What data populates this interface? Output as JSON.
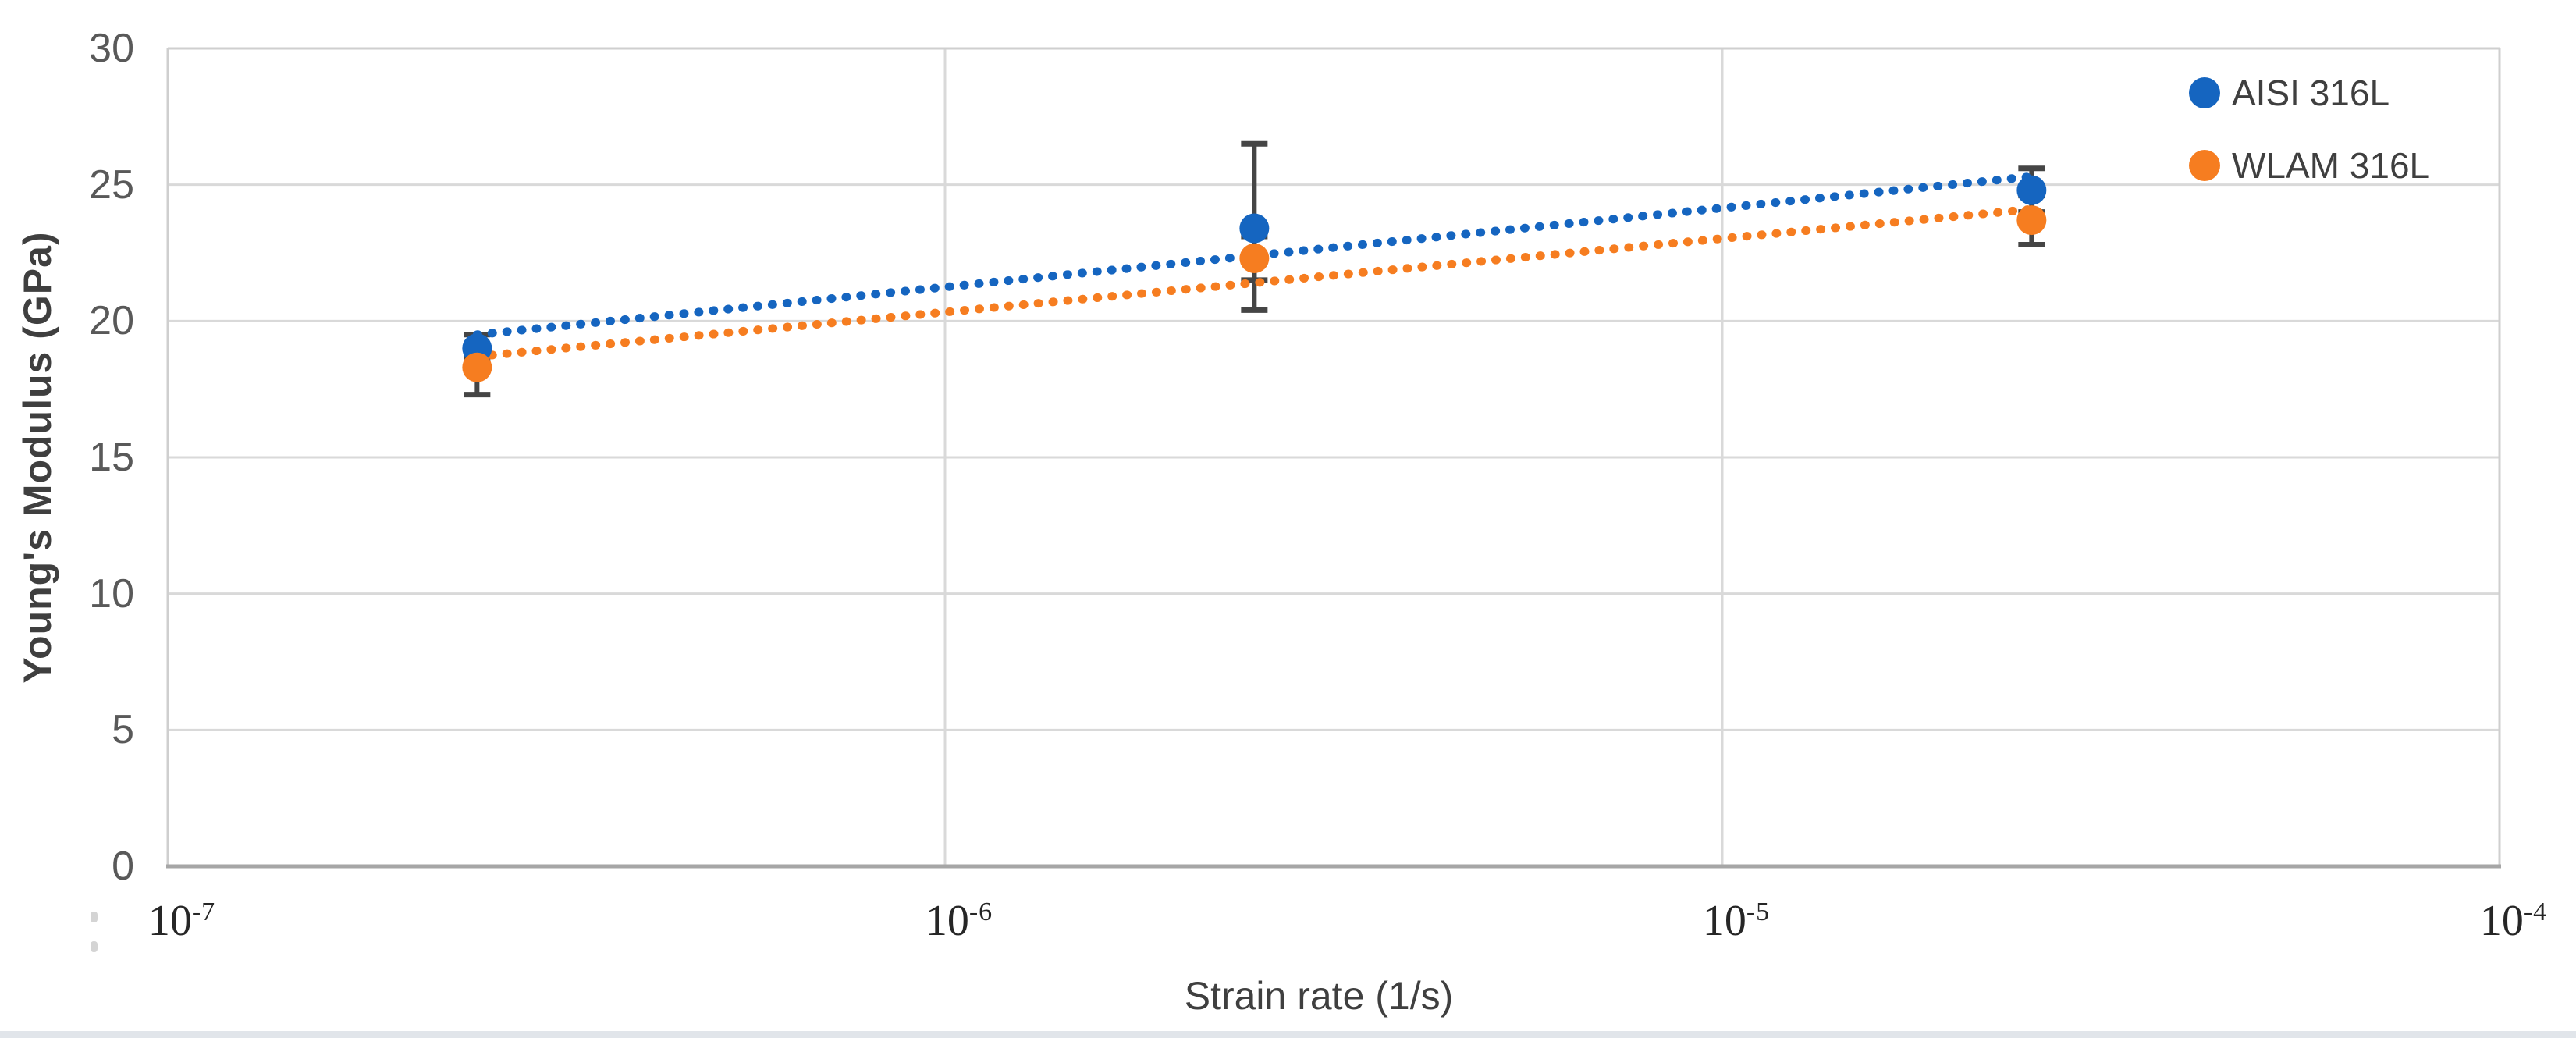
{
  "chart_data": {
    "type": "scatter",
    "title": "",
    "xlabel": "Strain rate (1/s)",
    "ylabel": "Young's Modulus (GPa)",
    "x_scale": "log",
    "xlim": [
      1e-07,
      0.0001
    ],
    "ylim": [
      0,
      30
    ],
    "y_ticks": [
      0,
      5,
      10,
      15,
      20,
      25,
      30
    ],
    "x_ticks": [
      {
        "base": "10",
        "exp": "-7",
        "value": 1e-07
      },
      {
        "base": "10",
        "exp": "-6",
        "value": 1e-06
      },
      {
        "base": "10",
        "exp": "-5",
        "value": 1e-05
      },
      {
        "base": "10",
        "exp": "-4",
        "value": 0.0001
      }
    ],
    "grid": {
      "x_values": [
        1e-06,
        1e-05
      ],
      "y_values": [
        5,
        10,
        15,
        20,
        25
      ]
    },
    "legend": {
      "position": "top-right",
      "entries": [
        {
          "label": "AISI 316L",
          "color": "#1565C0"
        },
        {
          "label": "WLAM 316L",
          "color": "#F67D20"
        }
      ]
    },
    "series": [
      {
        "name": "AISI 316L",
        "color": "#1565C0",
        "marker": "circle",
        "points": [
          {
            "x": 2.5e-07,
            "y": 19.0,
            "err_plus": 0.5,
            "err_minus": 0.5
          },
          {
            "x": 2.5e-06,
            "y": 23.4,
            "err_plus": 3.1,
            "err_minus": 1.9
          },
          {
            "x": 2.5e-05,
            "y": 24.8,
            "err_plus": 0.8,
            "err_minus": 0.8
          }
        ],
        "trendline": {
          "style": "dotted",
          "points": [
            {
              "x": 2.5e-07,
              "y": 19.5
            },
            {
              "x": 2.5e-05,
              "y": 25.3
            }
          ]
        }
      },
      {
        "name": "WLAM 316L",
        "color": "#F67D20",
        "marker": "circle",
        "points": [
          {
            "x": 2.5e-07,
            "y": 18.3,
            "err_plus": 0.4,
            "err_minus": 1.0
          },
          {
            "x": 2.5e-06,
            "y": 22.3,
            "err_plus": 0.8,
            "err_minus": 1.9
          },
          {
            "x": 2.5e-05,
            "y": 23.7,
            "err_plus": 0.9,
            "err_minus": 0.9
          }
        ],
        "trendline": {
          "style": "dotted",
          "points": [
            {
              "x": 2.5e-07,
              "y": 18.7
            },
            {
              "x": 2.5e-05,
              "y": 24.1
            }
          ]
        }
      }
    ],
    "style_colors": {
      "gridline": "#D9D9D9",
      "plot_border": "#CFCFCF",
      "axis_line": "#A6A6A6",
      "error_bar": "#454545",
      "y_tick_text": "#595959",
      "x_tick_text": "#262626",
      "title_text": "#3F3F3F",
      "bottom_strip": "#E1E5EA"
    }
  }
}
